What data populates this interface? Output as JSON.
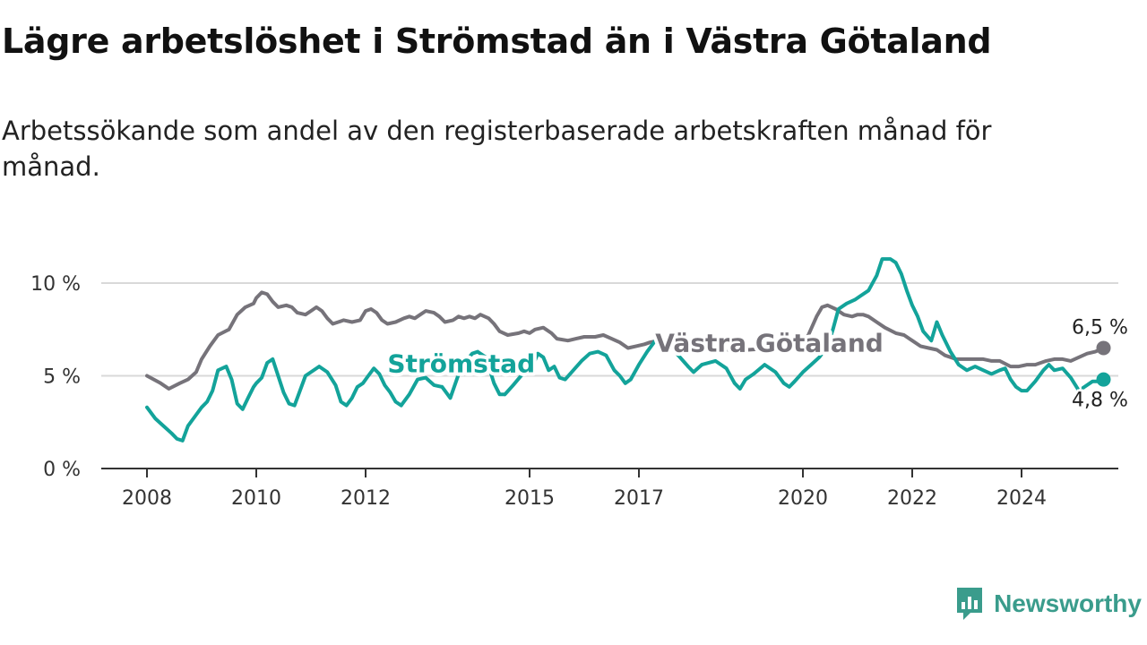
{
  "title": "Lägre arbetslöshet i Strömstad än i Västra Götaland",
  "subtitle": "Arbetssökande som andel av den registerbaserade arbetskraften månad för månad.",
  "brand": {
    "name": "Newsworthy",
    "icon": "newsworthy-logo-icon",
    "color": "#3a9c8c"
  },
  "chart_data": {
    "type": "line",
    "x_unit": "year",
    "y_unit": "%",
    "ylim": [
      0,
      11.5
    ],
    "xlim": [
      2008,
      2025.75
    ],
    "y_ticks": [
      {
        "value": 0,
        "label": "0 %"
      },
      {
        "value": 5,
        "label": "5 %"
      },
      {
        "value": 10,
        "label": "10 %"
      }
    ],
    "x_ticks": [
      {
        "value": 2008,
        "label": "2008"
      },
      {
        "value": 2010,
        "label": "2010"
      },
      {
        "value": 2012,
        "label": "2012"
      },
      {
        "value": 2015,
        "label": "2015"
      },
      {
        "value": 2017,
        "label": "2017"
      },
      {
        "value": 2020,
        "label": "2020"
      },
      {
        "value": 2022,
        "label": "2022"
      },
      {
        "value": 2024,
        "label": "2024"
      }
    ],
    "grid": true,
    "series": [
      {
        "name": "Västra Götaland",
        "color": "#76737a",
        "label_at": [
          2017.3,
          6.3
        ],
        "end_label": "6,5 %",
        "points": [
          [
            2008.0,
            5.0
          ],
          [
            2008.25,
            4.6
          ],
          [
            2008.4,
            4.3
          ],
          [
            2008.6,
            4.6
          ],
          [
            2008.75,
            4.8
          ],
          [
            2008.9,
            5.2
          ],
          [
            2009.0,
            5.9
          ],
          [
            2009.15,
            6.6
          ],
          [
            2009.3,
            7.2
          ],
          [
            2009.5,
            7.5
          ],
          [
            2009.65,
            8.3
          ],
          [
            2009.8,
            8.7
          ],
          [
            2009.95,
            8.9
          ],
          [
            2010.0,
            9.2
          ],
          [
            2010.1,
            9.5
          ],
          [
            2010.2,
            9.4
          ],
          [
            2010.3,
            9.0
          ],
          [
            2010.4,
            8.7
          ],
          [
            2010.55,
            8.8
          ],
          [
            2010.65,
            8.7
          ],
          [
            2010.75,
            8.4
          ],
          [
            2010.9,
            8.3
          ],
          [
            2011.0,
            8.5
          ],
          [
            2011.1,
            8.7
          ],
          [
            2011.2,
            8.5
          ],
          [
            2011.3,
            8.1
          ],
          [
            2011.4,
            7.8
          ],
          [
            2011.5,
            7.9
          ],
          [
            2011.6,
            8.0
          ],
          [
            2011.75,
            7.9
          ],
          [
            2011.9,
            8.0
          ],
          [
            2012.0,
            8.5
          ],
          [
            2012.1,
            8.6
          ],
          [
            2012.2,
            8.4
          ],
          [
            2012.3,
            8.0
          ],
          [
            2012.4,
            7.8
          ],
          [
            2012.55,
            7.9
          ],
          [
            2012.7,
            8.1
          ],
          [
            2012.8,
            8.2
          ],
          [
            2012.9,
            8.1
          ],
          [
            2013.0,
            8.3
          ],
          [
            2013.1,
            8.5
          ],
          [
            2013.25,
            8.4
          ],
          [
            2013.35,
            8.2
          ],
          [
            2013.45,
            7.9
          ],
          [
            2013.6,
            8.0
          ],
          [
            2013.7,
            8.2
          ],
          [
            2013.8,
            8.1
          ],
          [
            2013.9,
            8.2
          ],
          [
            2014.0,
            8.1
          ],
          [
            2014.1,
            8.3
          ],
          [
            2014.25,
            8.1
          ],
          [
            2014.35,
            7.8
          ],
          [
            2014.45,
            7.4
          ],
          [
            2014.6,
            7.2
          ],
          [
            2014.8,
            7.3
          ],
          [
            2014.9,
            7.4
          ],
          [
            2015.0,
            7.3
          ],
          [
            2015.1,
            7.5
          ],
          [
            2015.25,
            7.6
          ],
          [
            2015.4,
            7.3
          ],
          [
            2015.5,
            7.0
          ],
          [
            2015.7,
            6.9
          ],
          [
            2015.85,
            7.0
          ],
          [
            2016.0,
            7.1
          ],
          [
            2016.2,
            7.1
          ],
          [
            2016.35,
            7.2
          ],
          [
            2016.5,
            7.0
          ],
          [
            2016.65,
            6.8
          ],
          [
            2016.8,
            6.5
          ],
          [
            2016.95,
            6.6
          ],
          [
            2017.1,
            6.7
          ],
          [
            2017.2,
            6.8
          ],
          [
            2017.35,
            6.9
          ],
          [
            2017.45,
            6.8
          ],
          [
            2017.6,
            6.7
          ]
        ],
        "hidden_under_label": [
          [
            2017.6,
            6.7
          ],
          [
            2018.0,
            6.6
          ],
          [
            2018.5,
            6.4
          ],
          [
            2019.0,
            6.4
          ],
          [
            2019.5,
            6.5
          ],
          [
            2019.95,
            6.6
          ]
        ],
        "points_after": [
          [
            2019.95,
            6.6
          ],
          [
            2020.1,
            7.2
          ],
          [
            2020.25,
            8.2
          ],
          [
            2020.35,
            8.7
          ],
          [
            2020.45,
            8.8
          ],
          [
            2020.6,
            8.6
          ],
          [
            2020.75,
            8.3
          ],
          [
            2020.9,
            8.2
          ],
          [
            2021.0,
            8.3
          ],
          [
            2021.1,
            8.3
          ],
          [
            2021.2,
            8.2
          ],
          [
            2021.35,
            7.9
          ],
          [
            2021.5,
            7.6
          ],
          [
            2021.7,
            7.3
          ],
          [
            2021.85,
            7.2
          ],
          [
            2022.0,
            6.9
          ],
          [
            2022.15,
            6.6
          ],
          [
            2022.3,
            6.5
          ],
          [
            2022.45,
            6.4
          ],
          [
            2022.6,
            6.1
          ],
          [
            2022.8,
            5.9
          ],
          [
            2023.0,
            5.9
          ],
          [
            2023.15,
            5.9
          ],
          [
            2023.3,
            5.9
          ],
          [
            2023.45,
            5.8
          ],
          [
            2023.6,
            5.8
          ],
          [
            2023.8,
            5.5
          ],
          [
            2023.95,
            5.5
          ],
          [
            2024.1,
            5.6
          ],
          [
            2024.25,
            5.6
          ],
          [
            2024.45,
            5.8
          ],
          [
            2024.6,
            5.9
          ],
          [
            2024.75,
            5.9
          ],
          [
            2024.9,
            5.8
          ],
          [
            2025.05,
            6.0
          ],
          [
            2025.2,
            6.2
          ],
          [
            2025.35,
            6.3
          ],
          [
            2025.5,
            6.5
          ]
        ]
      },
      {
        "name": "Strömstad",
        "color": "#13a39a",
        "label_at": [
          2012.4,
          5.2
        ],
        "end_label": "4,8 %",
        "points": [
          [
            2008.0,
            3.3
          ],
          [
            2008.15,
            2.7
          ],
          [
            2008.3,
            2.3
          ],
          [
            2008.45,
            1.9
          ],
          [
            2008.55,
            1.6
          ],
          [
            2008.65,
            1.5
          ],
          [
            2008.75,
            2.3
          ],
          [
            2008.9,
            2.9
          ],
          [
            2009.0,
            3.3
          ],
          [
            2009.1,
            3.6
          ],
          [
            2009.2,
            4.2
          ],
          [
            2009.3,
            5.3
          ],
          [
            2009.45,
            5.5
          ],
          [
            2009.55,
            4.8
          ],
          [
            2009.65,
            3.5
          ],
          [
            2009.75,
            3.2
          ],
          [
            2009.85,
            3.8
          ],
          [
            2009.95,
            4.4
          ],
          [
            2010.0,
            4.6
          ],
          [
            2010.1,
            4.9
          ],
          [
            2010.2,
            5.7
          ],
          [
            2010.3,
            5.9
          ],
          [
            2010.4,
            5.0
          ],
          [
            2010.5,
            4.1
          ],
          [
            2010.6,
            3.5
          ],
          [
            2010.7,
            3.4
          ],
          [
            2010.8,
            4.2
          ],
          [
            2010.9,
            5.0
          ],
          [
            2011.0,
            5.2
          ],
          [
            2011.15,
            5.5
          ],
          [
            2011.3,
            5.2
          ],
          [
            2011.45,
            4.5
          ],
          [
            2011.55,
            3.6
          ],
          [
            2011.65,
            3.4
          ],
          [
            2011.75,
            3.8
          ],
          [
            2011.85,
            4.4
          ],
          [
            2011.95,
            4.6
          ],
          [
            2012.05,
            5.0
          ],
          [
            2012.15,
            5.4
          ],
          [
            2012.25,
            5.1
          ],
          [
            2012.35,
            4.5
          ],
          [
            2012.45,
            4.1
          ],
          [
            2012.55,
            3.6
          ],
          [
            2012.65,
            3.4
          ]
        ],
        "hidden_under_label": [
          [
            2012.65,
            3.4
          ],
          [
            2013.0,
            5.0
          ],
          [
            2013.5,
            3.8
          ],
          [
            2014.0,
            6.1
          ],
          [
            2014.5,
            4.0
          ],
          [
            2014.8,
            5.0
          ]
        ],
        "points_after": [
          [
            2013.4,
            4.4
          ],
          [
            2013.55,
            3.8
          ],
          [
            2013.75,
            5.5
          ],
          [
            2013.95,
            6.2
          ],
          [
            2014.05,
            6.3
          ]
        ],
        "points_mid": [
          [
            2014.55,
            4.0
          ],
          [
            2014.7,
            4.5
          ],
          [
            2014.9,
            5.2
          ],
          [
            2015.05,
            5.5
          ],
          [
            2015.15,
            6.2
          ],
          [
            2015.25,
            6.0
          ],
          [
            2015.35,
            5.3
          ],
          [
            2015.45,
            5.5
          ],
          [
            2015.55,
            4.9
          ],
          [
            2015.65,
            4.8
          ],
          [
            2015.8,
            5.3
          ],
          [
            2015.95,
            5.8
          ],
          [
            2016.1,
            6.2
          ],
          [
            2016.25,
            6.3
          ],
          [
            2016.4,
            6.1
          ],
          [
            2016.55,
            5.3
          ],
          [
            2016.65,
            5.0
          ],
          [
            2016.75,
            4.6
          ],
          [
            2016.85,
            4.8
          ],
          [
            2017.0,
            5.6
          ],
          [
            2017.15,
            6.3
          ],
          [
            2017.3,
            6.9
          ],
          [
            2017.45,
            6.8
          ],
          [
            2017.6,
            6.5
          ]
        ],
        "points_late": [
          [
            2017.9,
            5.5
          ],
          [
            2018.0,
            5.2
          ],
          [
            2018.15,
            5.6
          ]
        ],
        "points_late2": [
          [
            2018.75,
            4.6
          ],
          [
            2018.85,
            4.3
          ],
          [
            2018.95,
            4.8
          ],
          [
            2019.1,
            5.1
          ]
        ],
        "points_late3": [
          [
            2019.65,
            4.6
          ],
          [
            2019.75,
            4.4
          ],
          [
            2019.85,
            4.7
          ],
          [
            2020.0,
            5.2
          ],
          [
            2020.15,
            5.6
          ],
          [
            2020.3,
            6.0
          ],
          [
            2020.45,
            6.6
          ],
          [
            2020.55,
            7.5
          ],
          [
            2020.65,
            8.6
          ],
          [
            2020.8,
            8.9
          ],
          [
            2020.95,
            9.1
          ],
          [
            2021.05,
            9.3
          ],
          [
            2021.2,
            9.6
          ],
          [
            2021.35,
            10.4
          ],
          [
            2021.45,
            11.3
          ],
          [
            2021.6,
            11.3
          ],
          [
            2021.7,
            11.1
          ],
          [
            2021.8,
            10.5
          ],
          [
            2021.9,
            9.6
          ],
          [
            2022.0,
            8.8
          ],
          [
            2022.1,
            8.2
          ],
          [
            2022.2,
            7.4
          ],
          [
            2022.35,
            6.9
          ],
          [
            2022.45,
            7.9
          ],
          [
            2022.55,
            7.2
          ],
          [
            2022.7,
            6.3
          ],
          [
            2022.85,
            5.6
          ],
          [
            2023.0,
            5.3
          ],
          [
            2023.15,
            5.5
          ],
          [
            2023.3,
            5.3
          ],
          [
            2023.45,
            5.1
          ],
          [
            2023.6,
            5.3
          ],
          [
            2023.7,
            5.4
          ],
          [
            2023.8,
            4.8
          ],
          [
            2023.9,
            4.4
          ],
          [
            2024.0,
            4.2
          ],
          [
            2024.1,
            4.2
          ],
          [
            2024.25,
            4.7
          ],
          [
            2024.4,
            5.3
          ],
          [
            2024.5,
            5.6
          ],
          [
            2024.6,
            5.3
          ],
          [
            2024.75,
            5.4
          ],
          [
            2024.9,
            4.9
          ],
          [
            2025.05,
            4.2
          ],
          [
            2025.15,
            4.4
          ],
          [
            2025.3,
            4.7
          ],
          [
            2025.45,
            4.7
          ],
          [
            2025.5,
            4.8
          ]
        ]
      }
    ]
  }
}
